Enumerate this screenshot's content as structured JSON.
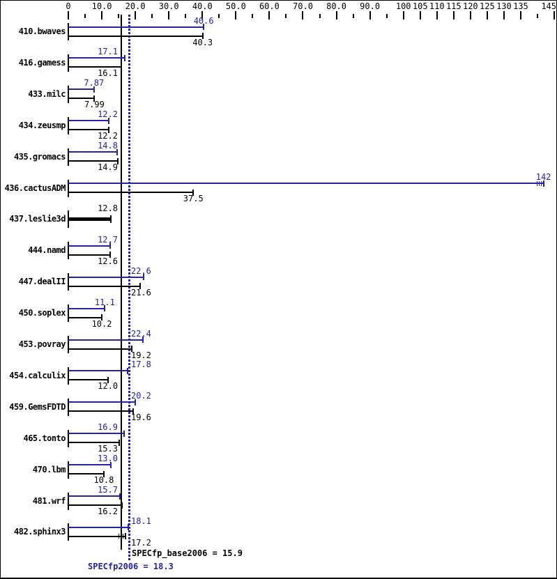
{
  "chart_data": {
    "type": "bar",
    "orientation": "horizontal",
    "title": "",
    "xlabel": "",
    "ylabel": "",
    "grid": false,
    "legend_position": "none",
    "x_range": [
      0,
      145
    ],
    "x_axis": {
      "labeled_ticks": [
        [
          0,
          "0"
        ],
        [
          10,
          "10.0"
        ],
        [
          20,
          "20.0"
        ],
        [
          30,
          "30.0"
        ],
        [
          40,
          "40.0"
        ],
        [
          50,
          "50.0"
        ],
        [
          60,
          "60.0"
        ],
        [
          70,
          "70.0"
        ],
        [
          80,
          "80.0"
        ],
        [
          90,
          "90.0"
        ],
        [
          100,
          "100"
        ],
        [
          105,
          "105"
        ],
        [
          110,
          "110"
        ],
        [
          115,
          "115"
        ],
        [
          120,
          "120"
        ],
        [
          125,
          "125"
        ],
        [
          130,
          "130"
        ],
        [
          135,
          "135"
        ],
        [
          145,
          "145"
        ]
      ],
      "minor_ticks": [
        5,
        15,
        25,
        35,
        45,
        55,
        65,
        75,
        85,
        95,
        140
      ]
    },
    "categories": [
      "410.bwaves",
      "416.gamess",
      "433.milc",
      "434.zeusmp",
      "435.gromacs",
      "436.cactusADM",
      "437.leslie3d",
      "444.namd",
      "447.dealII",
      "450.soplex",
      "453.povray",
      "454.calculix",
      "459.GemsFDTD",
      "465.tonto",
      "470.lbm",
      "481.wrf",
      "482.sphinx3"
    ],
    "series": [
      {
        "name": "SPECfp2006 (peak)",
        "color": "#2222aa",
        "values": [
          40.6,
          17.1,
          7.87,
          12.2,
          14.8,
          142,
          null,
          12.7,
          22.6,
          11.1,
          22.4,
          17.8,
          20.2,
          16.9,
          13.0,
          15.7,
          18.1
        ]
      },
      {
        "name": "SPECfp_base2006 (base)",
        "color": "#000000",
        "values": [
          40.3,
          16.1,
          7.99,
          12.2,
          14.9,
          37.5,
          12.8,
          12.6,
          21.6,
          10.2,
          19.2,
          12.0,
          19.6,
          15.3,
          10.8,
          16.2,
          17.2
        ]
      }
    ],
    "value_labels": {
      "peak": [
        "40.6",
        "17.1",
        "7.87",
        "12.2",
        "14.8",
        "142",
        null,
        "12.7",
        "22.6",
        "11.1",
        "22.4",
        "17.8",
        "20.2",
        "16.9",
        "13.0",
        "15.7",
        "18.1"
      ],
      "base": [
        "40.3",
        "16.1",
        "7.99",
        "12.2",
        "14.9",
        "37.5",
        "12.8",
        "12.6",
        "21.6",
        "10.2",
        "19.2",
        "12.0",
        "19.6",
        "15.3",
        "10.8",
        "16.2",
        "17.2"
      ]
    },
    "single_bar_benchmarks": [
      "437.leslie3d"
    ],
    "marked_bars": [
      {
        "benchmark": "436.cactusADM",
        "series": "peak"
      },
      {
        "benchmark": "482.sphinx3",
        "series": "base"
      }
    ],
    "mean_lines": [
      {
        "label": "SPECfp_base2006 = 15.9",
        "value": 15.9,
        "style": "solid",
        "color": "#000000"
      },
      {
        "label": "SPECfp2006 = 18.3",
        "value": 18.3,
        "style": "dotted",
        "color": "#2222aa"
      }
    ],
    "colors": {
      "peak": "#2222aa",
      "base": "#000000",
      "background": "#ffffff"
    }
  }
}
